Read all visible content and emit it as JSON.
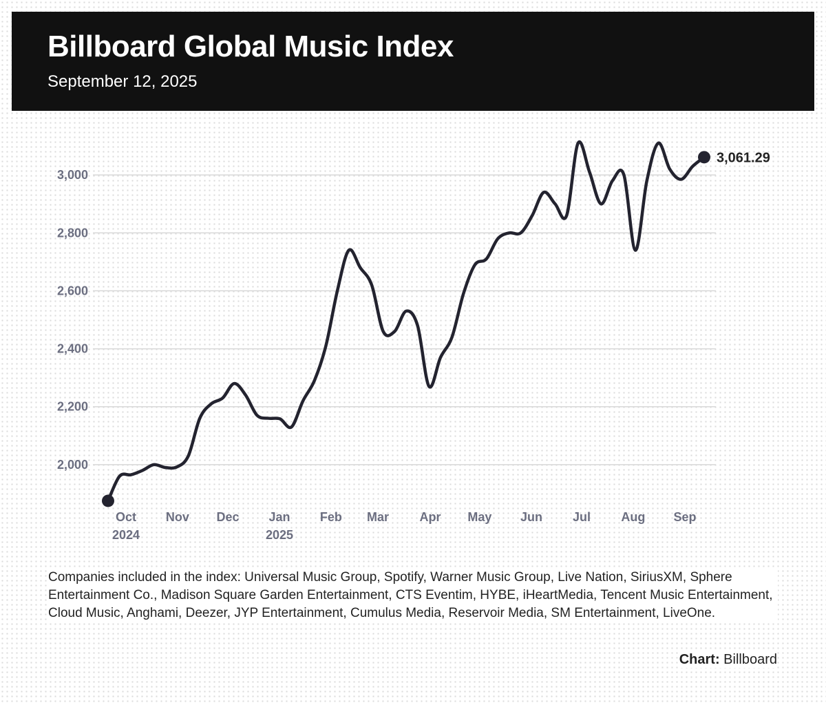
{
  "chart_data": {
    "type": "line",
    "title": "Billboard Global Music Index",
    "subtitle": "September 12, 2025",
    "x": [
      0,
      1,
      2,
      3,
      4,
      5,
      6,
      7,
      8,
      9,
      10,
      11,
      12,
      13,
      14,
      15,
      16,
      17,
      18,
      19,
      20,
      21,
      22,
      23,
      24,
      25,
      26,
      27,
      28,
      29,
      30,
      31,
      32,
      33,
      34,
      35,
      36,
      37,
      38,
      39,
      40,
      41,
      42,
      43,
      44,
      45,
      46,
      47,
      48,
      49,
      50,
      51,
      52
    ],
    "series": [
      {
        "name": "Billboard Global Music Index",
        "color": "#23232f",
        "values": [
          1875,
          1960,
          1965,
          1980,
          2000,
          1990,
          1992,
          2030,
          2160,
          2210,
          2230,
          2280,
          2240,
          2170,
          2160,
          2158,
          2130,
          2220,
          2290,
          2410,
          2600,
          2740,
          2680,
          2620,
          2460,
          2460,
          2530,
          2480,
          2270,
          2370,
          2440,
          2590,
          2690,
          2710,
          2780,
          2800,
          2800,
          2860,
          2940,
          2900,
          2860,
          3110,
          3010,
          2900,
          2980,
          3000,
          2740,
          2980,
          3110,
          3020,
          2985,
          3030,
          3061.29
        ],
        "value_labels": [
          null,
          null,
          null,
          null,
          null,
          null,
          null,
          null,
          null,
          null,
          null,
          null,
          null,
          null,
          null,
          null,
          null,
          null,
          null,
          null,
          null,
          null,
          null,
          null,
          null,
          null,
          null,
          null,
          null,
          null,
          null,
          null,
          null,
          null,
          null,
          null,
          null,
          null,
          null,
          null,
          null,
          null,
          null,
          null,
          null,
          null,
          null,
          null,
          null,
          null,
          null,
          null,
          "3,061.29"
        ]
      }
    ],
    "xlim": [
      0,
      52
    ],
    "xticks": [
      {
        "value": 1.56,
        "label": "Oct 2024"
      },
      {
        "value": 6.06,
        "label": "Nov"
      },
      {
        "value": 10.45,
        "label": "Dec"
      },
      {
        "value": 14.95,
        "label": "Jan 2025"
      },
      {
        "value": 19.45,
        "label": "Feb"
      },
      {
        "value": 23.54,
        "label": "Mar"
      },
      {
        "value": 28.1,
        "label": "Apr"
      },
      {
        "value": 32.42,
        "label": "May"
      },
      {
        "value": 36.93,
        "label": "Jun"
      },
      {
        "value": 41.31,
        "label": "Jul"
      },
      {
        "value": 45.81,
        "label": "Aug"
      },
      {
        "value": 50.32,
        "label": "Sep"
      }
    ],
    "ylim": [
      1850,
      3150
    ],
    "yticks": [
      {
        "value": 2000,
        "label": "2,000"
      },
      {
        "value": 2200,
        "label": "2,200"
      },
      {
        "value": 2400,
        "label": "2,400"
      },
      {
        "value": 2600,
        "label": "2,600"
      },
      {
        "value": 2800,
        "label": "2,800"
      },
      {
        "value": 3000,
        "label": "3,000"
      }
    ],
    "grid": true,
    "note": "Companies included in the index: Universal Music Group, Spotify, Warner Music Group, Live Nation, SiriusXM, Sphere Entertainment Co., Madison Square Garden Entertainment, CTS Eventim, HYBE, iHeartMedia, Tencent Music Entertainment, Cloud Music, Anghami, Deezer, JYP Entertainment, Cumulus Media, Reservoir Media, SM Entertainment, LiveOne.",
    "source": {
      "label": "Chart:",
      "name": "Billboard"
    }
  }
}
